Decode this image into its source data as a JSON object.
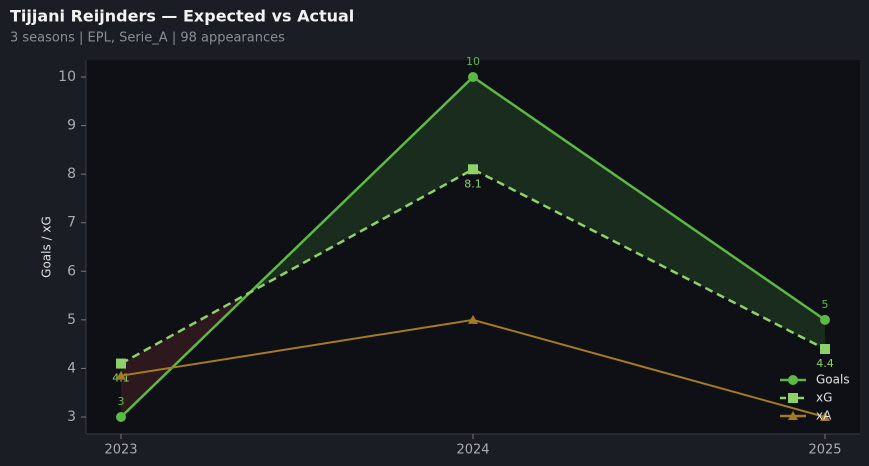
{
  "chart_data": {
    "type": "line",
    "title": "Tijjani Reijnders — Expected vs Actual",
    "subtitle": "3 seasons | EPL, Serie_A | 98 appearances",
    "y_label": "Goals / xG",
    "categories": [
      "2023",
      "2024",
      "2025"
    ],
    "series": [
      {
        "name": "Goals",
        "color": "#5cb944",
        "values": [
          3,
          10,
          5
        ],
        "marker": "circle",
        "dash": false,
        "labels": true
      },
      {
        "name": "xG",
        "color": "#8fd169",
        "values": [
          4.1,
          8.1,
          4.4
        ],
        "marker": "square",
        "dash": true,
        "labels": true
      },
      {
        "name": "xA",
        "color": "#a47a22",
        "values": [
          3.85,
          5,
          3.0
        ],
        "marker": "triangle",
        "dash": false,
        "labels": false
      }
    ],
    "fill_above": "#1b2e1f",
    "fill_below": "#2f1a1d",
    "ylim": [
      2.65,
      10.35
    ],
    "yticks": [
      3,
      4,
      5,
      6,
      7,
      8,
      9,
      10
    ],
    "legend": "lower right"
  }
}
